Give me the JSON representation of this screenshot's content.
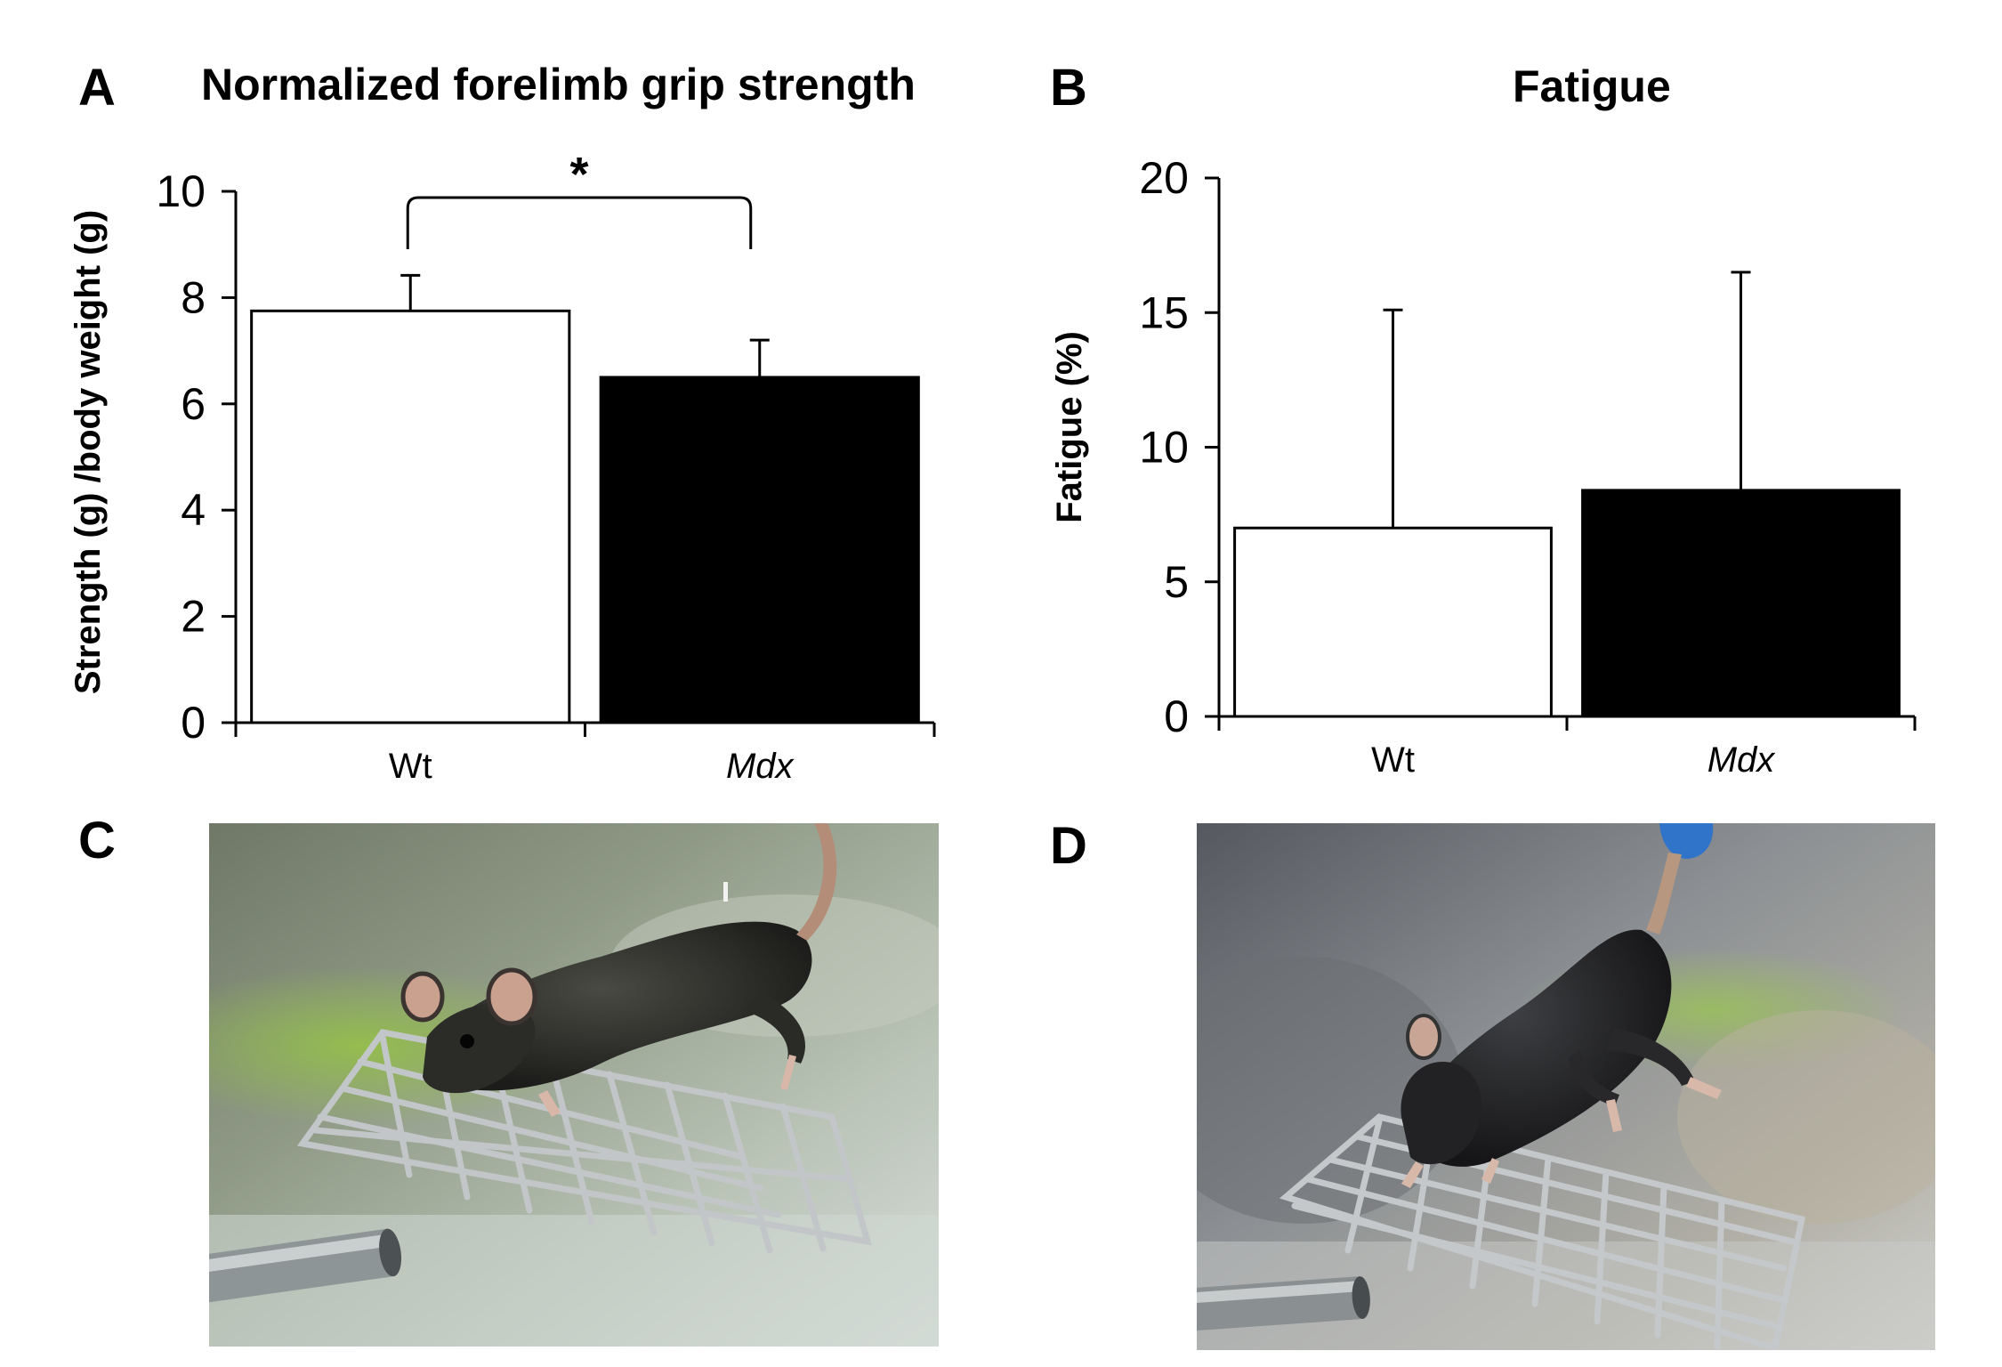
{
  "panels": {
    "a": {
      "letter": "A",
      "title": "Normalized forelimb grip strength"
    },
    "b": {
      "letter": "B",
      "title": "Fatigue"
    },
    "c": {
      "letter": "C"
    },
    "d": {
      "letter": "D"
    }
  },
  "colors": {
    "wt_fill": "#ffffff",
    "mdx_fill": "#000000",
    "axis": "#000000"
  },
  "chart_data": [
    {
      "type": "bar",
      "title": "Normalized forelimb grip strength",
      "categories": [
        "Wt",
        "Mdx"
      ],
      "values": [
        7.75,
        6.5
      ],
      "error_upper": [
        8.42,
        7.2
      ],
      "ylabel": "Strength (g) /body weight (g)",
      "xlabel": "",
      "ylim": [
        0,
        10
      ],
      "yticks": [
        0,
        2,
        4,
        6,
        8,
        10
      ],
      "bar_colors": [
        "#ffffff",
        "#000000"
      ],
      "significance": {
        "label": "*",
        "between": [
          "Wt",
          "Mdx"
        ]
      },
      "grid": false
    },
    {
      "type": "bar",
      "title": "Fatigue",
      "categories": [
        "Wt",
        "Mdx"
      ],
      "values": [
        7.0,
        8.4
      ],
      "error_upper": [
        15.1,
        16.5
      ],
      "ylabel": "Fatigue (%)",
      "xlabel": "",
      "ylim": [
        0,
        20
      ],
      "yticks": [
        0,
        5,
        10,
        15,
        20
      ],
      "bar_colors": [
        "#ffffff",
        "#000000"
      ],
      "grid": false
    }
  ]
}
